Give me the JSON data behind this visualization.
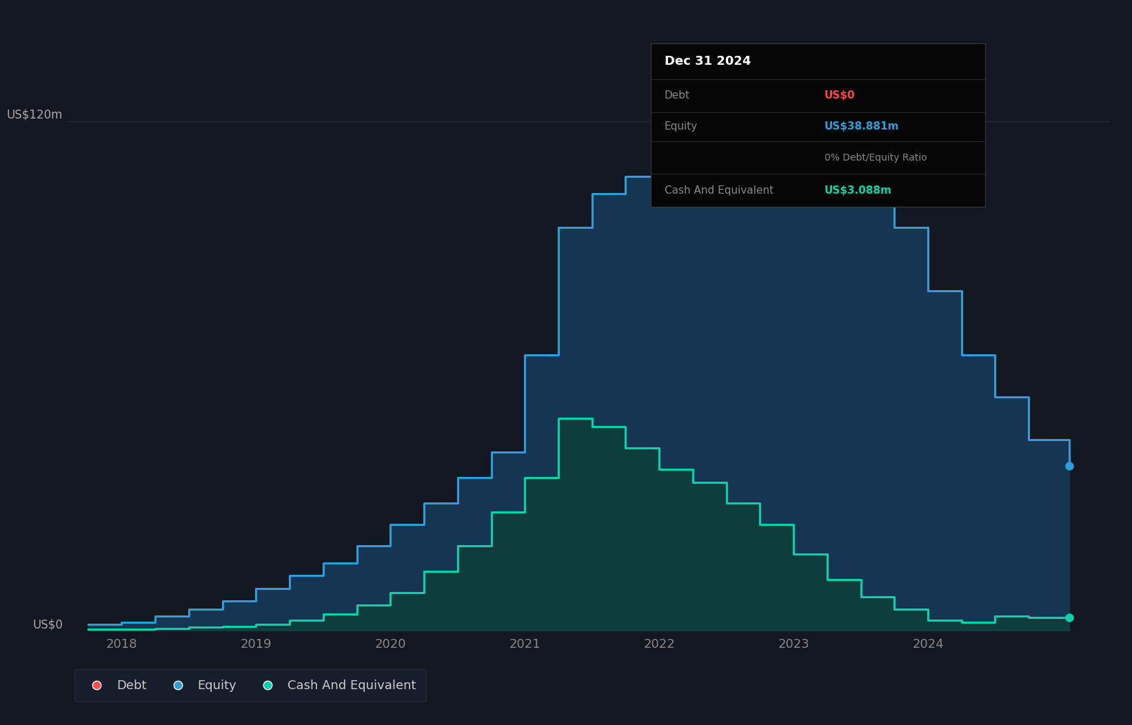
{
  "bg_color": "#131722",
  "plot_bg_color": "#131722",
  "grid_color": "#2a2e39",
  "ylim": [
    0,
    140
  ],
  "xlim_start": 2017.6,
  "xlim_end": 2025.35,
  "xtick_labels": [
    "2018",
    "2019",
    "2020",
    "2021",
    "2022",
    "2023",
    "2024"
  ],
  "xtick_positions": [
    2018,
    2019,
    2020,
    2021,
    2022,
    2023,
    2024
  ],
  "y_label_text": "US$120m",
  "y_zero_text": "US$0",
  "ytick_vals": [
    0,
    120
  ],
  "debt_color": "#ff4d4d",
  "equity_color": "#2b9fd8",
  "cash_color": "#00d4aa",
  "equity_fill_color": "#163553",
  "cash_fill_color": "#0d3d3d",
  "legend_items": [
    "Debt",
    "Equity",
    "Cash And Equivalent"
  ],
  "tooltip_bg": "#060606",
  "tooltip_title": "Dec 31 2024",
  "tooltip_debt_label": "Debt",
  "tooltip_debt_value": "US$0",
  "tooltip_equity_label": "Equity",
  "tooltip_equity_value": "US$38.881m",
  "tooltip_ratio": "0% Debt/Equity Ratio",
  "tooltip_cash_label": "Cash And Equivalent",
  "tooltip_cash_value": "US$3.088m",
  "equity_data": {
    "x": [
      2017.75,
      2018.0,
      2018.25,
      2018.5,
      2018.75,
      2019.0,
      2019.25,
      2019.5,
      2019.75,
      2020.0,
      2020.25,
      2020.5,
      2020.75,
      2021.0,
      2021.25,
      2021.5,
      2021.75,
      2022.0,
      2022.25,
      2022.5,
      2022.75,
      2023.0,
      2023.25,
      2023.5,
      2023.75,
      2024.0,
      2024.25,
      2024.5,
      2024.75,
      2025.05
    ],
    "y": [
      1.5,
      2.0,
      3.5,
      5.0,
      7.0,
      10.0,
      13.0,
      16.0,
      20.0,
      25.0,
      30.0,
      36.0,
      42.0,
      65.0,
      95.0,
      103.0,
      107.0,
      110.0,
      115.0,
      113.0,
      110.0,
      122.0,
      119.0,
      112.0,
      95.0,
      80.0,
      65.0,
      55.0,
      45.0,
      38.881
    ]
  },
  "cash_data": {
    "x": [
      2017.75,
      2018.0,
      2018.25,
      2018.5,
      2018.75,
      2019.0,
      2019.25,
      2019.5,
      2019.75,
      2020.0,
      2020.25,
      2020.5,
      2020.75,
      2021.0,
      2021.25,
      2021.5,
      2021.75,
      2022.0,
      2022.25,
      2022.5,
      2022.75,
      2023.0,
      2023.25,
      2023.5,
      2023.75,
      2024.0,
      2024.25,
      2024.5,
      2024.75,
      2025.05
    ],
    "y": [
      0.3,
      0.3,
      0.5,
      0.8,
      1.0,
      1.5,
      2.5,
      4.0,
      6.0,
      9.0,
      14.0,
      20.0,
      28.0,
      36.0,
      50.0,
      48.0,
      43.0,
      38.0,
      35.0,
      30.0,
      25.0,
      18.0,
      12.0,
      8.0,
      5.0,
      2.5,
      2.0,
      3.5,
      3.2,
      3.088
    ]
  },
  "debt_data": {
    "x": [
      2017.75,
      2018.75,
      2019.0,
      2025.05
    ],
    "y": [
      -1.5,
      -1.5,
      -1.5,
      -1.5
    ]
  }
}
